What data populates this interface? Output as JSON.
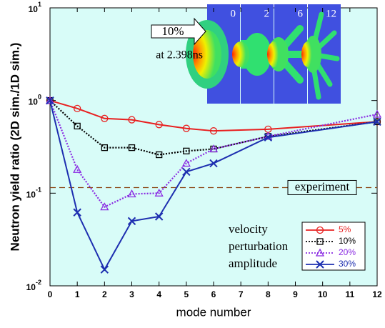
{
  "chart_data": {
    "type": "line",
    "xlabel": "mode number",
    "ylabel": "Neutron yield ratio (2D sim./1D sim.)",
    "log_y": true,
    "xlim": [
      0,
      12
    ],
    "ylim": [
      0.01,
      10
    ],
    "xticks": [
      0,
      1,
      2,
      3,
      4,
      5,
      6,
      7,
      8,
      9,
      10,
      11,
      12
    ],
    "yticks": [
      {
        "value": 10,
        "label": "10",
        "exponent": "1"
      },
      {
        "value": 1,
        "label": "10",
        "exponent": "0"
      },
      {
        "value": 0.1,
        "label": "10",
        "exponent": "-1"
      },
      {
        "value": 0.01,
        "label": "10",
        "exponent": "-2"
      }
    ],
    "background": "#d8fcf8",
    "x": [
      0,
      1,
      2,
      3,
      4,
      5,
      6,
      8,
      12
    ],
    "series": [
      {
        "name": "5%",
        "color": "#e82020",
        "marker": "circle",
        "dash": "solid",
        "values": [
          1.0,
          0.82,
          0.64,
          0.62,
          0.55,
          0.5,
          0.47,
          0.49,
          0.59
        ]
      },
      {
        "name": "10%",
        "color": "#000000",
        "marker": "square",
        "dash": "dotted",
        "values": [
          1.0,
          0.53,
          0.31,
          0.31,
          0.26,
          0.285,
          0.3,
          0.41,
          0.59
        ]
      },
      {
        "name": "20%",
        "color": "#8a2be2",
        "marker": "triangle",
        "dash": "dotted",
        "values": [
          1.0,
          0.18,
          0.071,
          0.098,
          0.1,
          0.21,
          0.3,
          0.41,
          0.71
        ]
      },
      {
        "name": "30%",
        "color": "#1e2fb0",
        "marker": "x",
        "dash": "solid",
        "values": [
          1.0,
          0.062,
          0.015,
          0.05,
          0.056,
          0.17,
          0.21,
          0.4,
          0.59
        ]
      }
    ],
    "reference": {
      "label": "experiment",
      "value": 0.115,
      "color": "#8b4513"
    },
    "legend_title": [
      "velocity",
      "perturbation",
      "amplitude"
    ],
    "inset": {
      "annotation": "10%",
      "time": "at 2.398ns",
      "labels": [
        "0",
        "2",
        "6",
        "12"
      ]
    }
  }
}
